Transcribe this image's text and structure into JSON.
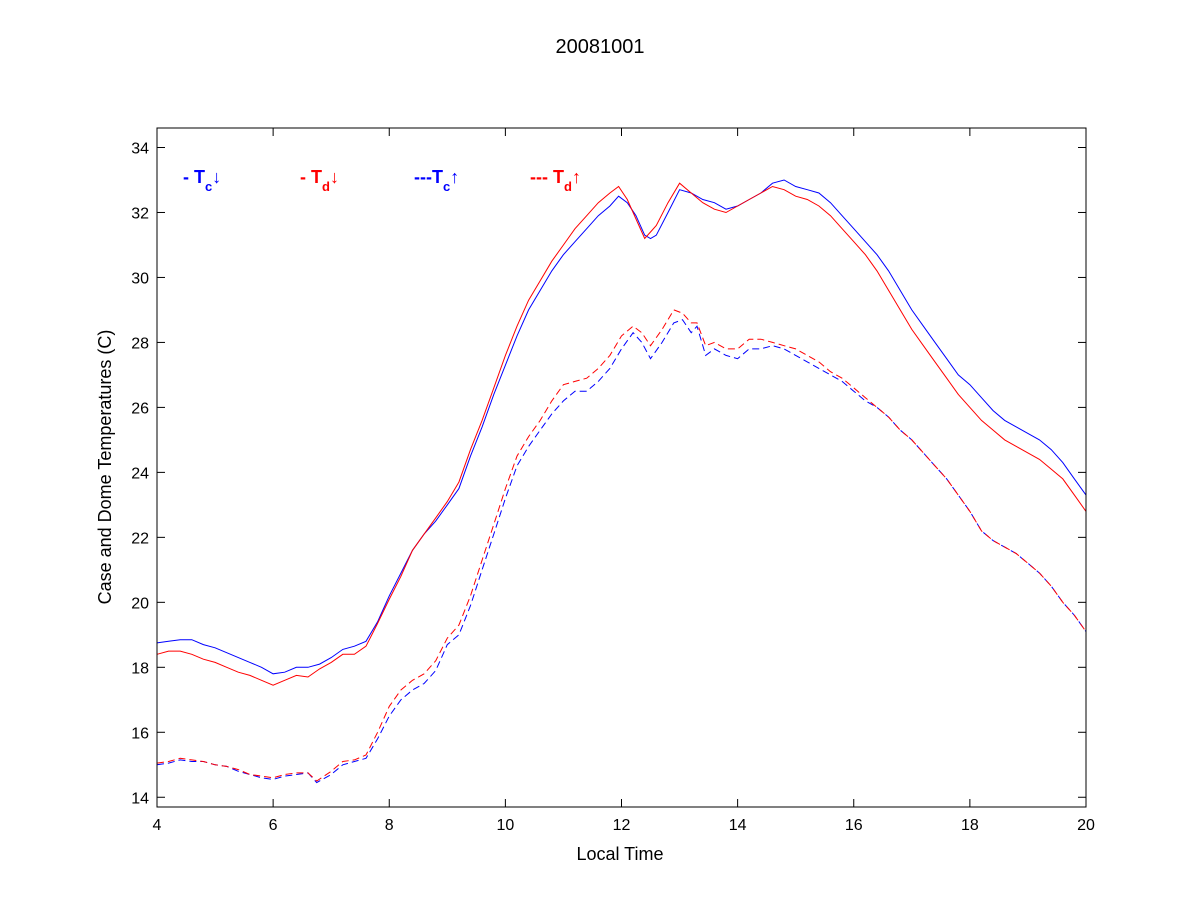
{
  "chart_data": {
    "type": "line",
    "title": "20081001",
    "xlabel": "Local Time",
    "ylabel": "Case and Dome Temperatures (C)",
    "xlim": [
      4,
      20
    ],
    "ylim": [
      13.7,
      34.6
    ],
    "xticks": [
      4,
      6,
      8,
      10,
      12,
      14,
      16,
      18,
      20
    ],
    "yticks": [
      14,
      16,
      18,
      20,
      22,
      24,
      26,
      28,
      30,
      32,
      34
    ],
    "grid": false,
    "legend_position": "top-left",
    "colors": {
      "blue": "#0000ff",
      "red": "#ff0000"
    },
    "legend": [
      {
        "prefix": "- ",
        "main": "T",
        "sub": "c",
        "arrow": "↓",
        "color": "#0000ff"
      },
      {
        "prefix": "- ",
        "main": "T",
        "sub": "d",
        "arrow": "↓",
        "color": "#ff0000"
      },
      {
        "prefix": "---",
        "main": "T",
        "sub": "c",
        "arrow": "↑",
        "color": "#0000ff"
      },
      {
        "prefix": "--- ",
        "main": "T",
        "sub": "d",
        "arrow": "↑",
        "color": "#ff0000"
      }
    ],
    "series": [
      {
        "color": "#0000ff",
        "dash": "solid",
        "x": [
          4.0,
          4.2,
          4.4,
          4.6,
          4.8,
          5.0,
          5.2,
          5.4,
          5.6,
          5.8,
          6.0,
          6.2,
          6.4,
          6.6,
          6.8,
          7.0,
          7.2,
          7.4,
          7.6,
          7.8,
          8.0,
          8.2,
          8.4,
          8.6,
          8.8,
          9.0,
          9.2,
          9.4,
          9.6,
          9.8,
          10.0,
          10.2,
          10.4,
          10.6,
          10.8,
          11.0,
          11.2,
          11.4,
          11.6,
          11.8,
          11.95,
          12.1,
          12.25,
          12.4,
          12.5,
          12.6,
          12.8,
          13.0,
          13.2,
          13.4,
          13.6,
          13.8,
          14.0,
          14.2,
          14.4,
          14.6,
          14.8,
          15.0,
          15.2,
          15.4,
          15.6,
          15.8,
          16.0,
          16.2,
          16.4,
          16.6,
          16.8,
          17.0,
          17.2,
          17.4,
          17.6,
          17.8,
          18.0,
          18.2,
          18.4,
          18.6,
          18.8,
          19.0,
          19.2,
          19.4,
          19.6,
          19.8,
          20.0
        ],
        "y": [
          18.75,
          18.8,
          18.85,
          18.85,
          18.7,
          18.6,
          18.45,
          18.3,
          18.15,
          18.0,
          17.8,
          17.85,
          18.0,
          18.0,
          18.1,
          18.3,
          18.55,
          18.65,
          18.8,
          19.4,
          20.2,
          20.9,
          21.6,
          22.1,
          22.5,
          23.0,
          23.5,
          24.5,
          25.4,
          26.4,
          27.3,
          28.2,
          29.0,
          29.6,
          30.2,
          30.7,
          31.1,
          31.5,
          31.9,
          32.2,
          32.5,
          32.3,
          31.9,
          31.3,
          31.2,
          31.3,
          32.0,
          32.7,
          32.6,
          32.4,
          32.3,
          32.1,
          32.2,
          32.4,
          32.6,
          32.9,
          33.0,
          32.8,
          32.7,
          32.6,
          32.3,
          31.9,
          31.5,
          31.1,
          30.7,
          30.2,
          29.6,
          29.0,
          28.5,
          28.0,
          27.5,
          27.0,
          26.7,
          26.3,
          25.9,
          25.6,
          25.4,
          25.2,
          25.0,
          24.7,
          24.3,
          23.8,
          23.3
        ]
      },
      {
        "color": "#ff0000",
        "dash": "solid",
        "x": [
          4.0,
          4.2,
          4.4,
          4.6,
          4.8,
          5.0,
          5.2,
          5.4,
          5.6,
          5.8,
          6.0,
          6.2,
          6.4,
          6.6,
          6.8,
          7.0,
          7.2,
          7.4,
          7.6,
          7.8,
          8.0,
          8.2,
          8.4,
          8.6,
          8.8,
          9.0,
          9.2,
          9.4,
          9.6,
          9.8,
          10.0,
          10.2,
          10.4,
          10.6,
          10.8,
          11.0,
          11.2,
          11.4,
          11.6,
          11.8,
          11.95,
          12.1,
          12.25,
          12.4,
          12.5,
          12.6,
          12.8,
          13.0,
          13.2,
          13.4,
          13.6,
          13.8,
          14.0,
          14.2,
          14.4,
          14.6,
          14.8,
          15.0,
          15.2,
          15.4,
          15.6,
          15.8,
          16.0,
          16.2,
          16.4,
          16.6,
          16.8,
          17.0,
          17.2,
          17.4,
          17.6,
          17.8,
          18.0,
          18.2,
          18.4,
          18.6,
          18.8,
          19.0,
          19.2,
          19.4,
          19.6,
          19.8,
          20.0
        ],
        "y": [
          18.4,
          18.5,
          18.5,
          18.4,
          18.25,
          18.15,
          18.0,
          17.85,
          17.75,
          17.6,
          17.45,
          17.6,
          17.75,
          17.7,
          17.95,
          18.15,
          18.4,
          18.4,
          18.65,
          19.35,
          20.1,
          20.8,
          21.6,
          22.1,
          22.6,
          23.1,
          23.7,
          24.7,
          25.6,
          26.6,
          27.6,
          28.5,
          29.3,
          29.9,
          30.5,
          31.0,
          31.5,
          31.9,
          32.3,
          32.6,
          32.8,
          32.4,
          31.8,
          31.2,
          31.4,
          31.6,
          32.3,
          32.9,
          32.6,
          32.3,
          32.1,
          32.0,
          32.2,
          32.4,
          32.6,
          32.8,
          32.7,
          32.5,
          32.4,
          32.2,
          31.9,
          31.5,
          31.1,
          30.7,
          30.2,
          29.6,
          29.0,
          28.4,
          27.9,
          27.4,
          26.9,
          26.4,
          26.0,
          25.6,
          25.3,
          25.0,
          24.8,
          24.6,
          24.4,
          24.1,
          23.8,
          23.3,
          22.8
        ]
      },
      {
        "color": "#0000ff",
        "dash": "dashed",
        "x": [
          4.0,
          4.2,
          4.4,
          4.6,
          4.8,
          5.0,
          5.2,
          5.4,
          5.6,
          5.8,
          6.0,
          6.2,
          6.4,
          6.6,
          6.75,
          7.0,
          7.2,
          7.4,
          7.6,
          7.8,
          8.0,
          8.2,
          8.4,
          8.6,
          8.8,
          9.0,
          9.2,
          9.4,
          9.6,
          9.8,
          10.0,
          10.2,
          10.4,
          10.6,
          10.8,
          11.0,
          11.2,
          11.4,
          11.6,
          11.8,
          12.0,
          12.2,
          12.35,
          12.5,
          12.7,
          12.9,
          13.05,
          13.2,
          13.3,
          13.45,
          13.6,
          13.8,
          14.0,
          14.2,
          14.4,
          14.6,
          14.8,
          15.0,
          15.2,
          15.4,
          15.6,
          15.8,
          16.0,
          16.2,
          16.4,
          16.6,
          16.8,
          17.0,
          17.2,
          17.4,
          17.6,
          17.8,
          18.0,
          18.2,
          18.4,
          18.6,
          18.8,
          19.0,
          19.2,
          19.4,
          19.6,
          19.8,
          20.0
        ],
        "y": [
          15.0,
          15.05,
          15.15,
          15.1,
          15.1,
          15.0,
          14.95,
          14.8,
          14.7,
          14.6,
          14.55,
          14.65,
          14.7,
          14.75,
          14.45,
          14.7,
          15.0,
          15.1,
          15.2,
          15.8,
          16.5,
          17.0,
          17.3,
          17.5,
          17.9,
          18.7,
          19.0,
          19.9,
          21.0,
          22.1,
          23.2,
          24.2,
          24.8,
          25.3,
          25.8,
          26.2,
          26.5,
          26.5,
          26.8,
          27.2,
          27.8,
          28.3,
          28.0,
          27.5,
          28.0,
          28.6,
          28.7,
          28.3,
          28.5,
          27.6,
          27.8,
          27.6,
          27.5,
          27.8,
          27.8,
          27.9,
          27.8,
          27.6,
          27.4,
          27.2,
          27.0,
          26.8,
          26.5,
          26.2,
          26.0,
          25.7,
          25.3,
          25.0,
          24.6,
          24.2,
          23.8,
          23.3,
          22.8,
          22.2,
          21.9,
          21.7,
          21.5,
          21.2,
          20.9,
          20.5,
          20.0,
          19.6,
          19.1
        ]
      },
      {
        "color": "#ff0000",
        "dash": "dashed",
        "x": [
          4.0,
          4.2,
          4.4,
          4.6,
          4.8,
          5.0,
          5.2,
          5.4,
          5.6,
          5.8,
          6.0,
          6.2,
          6.4,
          6.6,
          6.75,
          7.0,
          7.2,
          7.4,
          7.6,
          7.8,
          8.0,
          8.2,
          8.4,
          8.6,
          8.8,
          9.0,
          9.2,
          9.4,
          9.6,
          9.8,
          10.0,
          10.2,
          10.4,
          10.6,
          10.8,
          11.0,
          11.2,
          11.4,
          11.6,
          11.8,
          12.0,
          12.2,
          12.35,
          12.5,
          12.7,
          12.9,
          13.05,
          13.2,
          13.3,
          13.45,
          13.6,
          13.8,
          14.0,
          14.2,
          14.4,
          14.6,
          14.8,
          15.0,
          15.2,
          15.4,
          15.6,
          15.8,
          16.0,
          16.2,
          16.4,
          16.6,
          16.8,
          17.0,
          17.2,
          17.4,
          17.6,
          17.8,
          18.0,
          18.2,
          18.4,
          18.6,
          18.8,
          19.0,
          19.2,
          19.4,
          19.6,
          19.8,
          20.0
        ],
        "y": [
          15.05,
          15.1,
          15.2,
          15.15,
          15.1,
          15.0,
          14.95,
          14.85,
          14.7,
          14.65,
          14.6,
          14.7,
          14.75,
          14.75,
          14.5,
          14.8,
          15.1,
          15.15,
          15.3,
          16.0,
          16.8,
          17.3,
          17.6,
          17.8,
          18.2,
          18.9,
          19.3,
          20.2,
          21.3,
          22.4,
          23.5,
          24.5,
          25.1,
          25.6,
          26.2,
          26.7,
          26.8,
          26.9,
          27.2,
          27.6,
          28.2,
          28.5,
          28.3,
          27.9,
          28.4,
          29.0,
          28.9,
          28.6,
          28.6,
          27.9,
          28.0,
          27.8,
          27.8,
          28.1,
          28.1,
          28.0,
          27.9,
          27.8,
          27.6,
          27.4,
          27.1,
          26.9,
          26.6,
          26.3,
          26.0,
          25.7,
          25.3,
          25.0,
          24.6,
          24.2,
          23.8,
          23.3,
          22.8,
          22.2,
          21.9,
          21.7,
          21.5,
          21.2,
          20.9,
          20.5,
          20.0,
          19.6,
          19.1
        ]
      }
    ]
  }
}
